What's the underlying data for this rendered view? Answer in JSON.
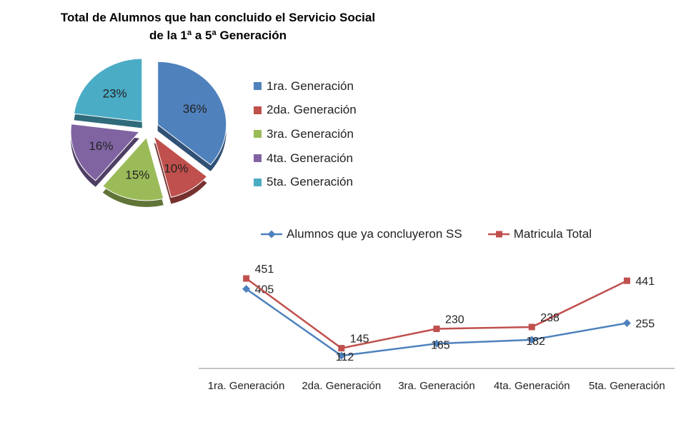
{
  "chart_data": [
    {
      "type": "pie",
      "title_line1": "Total de Alumnos que han concluido el Servicio Social",
      "title_line2": "de la 1ª a 5ª Generación",
      "categories": [
        "1ra. Generación",
        "2da. Generación",
        "3ra. Generación",
        "4ta. Generación",
        "5ta. Generación"
      ],
      "values": [
        36,
        10,
        15,
        16,
        23
      ],
      "labels": [
        "36%",
        "10%",
        "15%",
        "16%",
        "23%"
      ],
      "colors": [
        "#4F81BD",
        "#C0504D",
        "#9BBB59",
        "#8064A2",
        "#4BACC6"
      ],
      "exploded": true,
      "legend_position": "right"
    },
    {
      "type": "line",
      "categories": [
        "1ra. Generación",
        "2da. Generación",
        "3ra. Generación",
        "4ta. Generación",
        "5ta. Generación"
      ],
      "series": [
        {
          "name": "Alumnos que ya concluyeron SS",
          "values": [
            405,
            112,
            165,
            182,
            255
          ],
          "color": "#4F81BD",
          "marker": "diamond"
        },
        {
          "name": "Matricula Total",
          "values": [
            451,
            145,
            230,
            238,
            441
          ],
          "color": "#C0504D",
          "marker": "square"
        }
      ],
      "legend_position": "top",
      "grid": false
    }
  ]
}
